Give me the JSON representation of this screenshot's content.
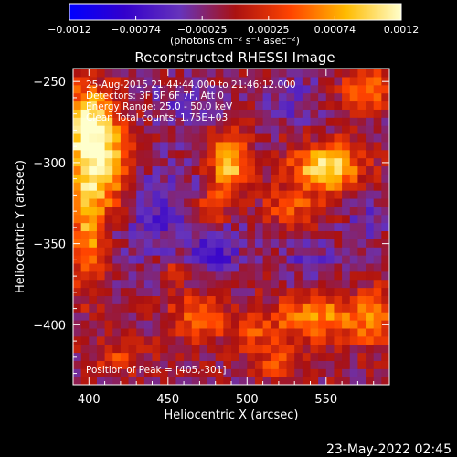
{
  "chart_data": {
    "type": "heatmap",
    "title": "Reconstructed RHESSI Image",
    "xlabel": "Heliocentric X (arcsec)",
    "ylabel": "Heliocentric Y (arcsec)",
    "xlim": [
      390,
      590
    ],
    "ylim": [
      -437,
      -242
    ],
    "x_ticks": [
      400,
      450,
      500,
      550
    ],
    "y_ticks": [
      -250,
      -300,
      -350,
      -400
    ],
    "colorbar": {
      "range": [
        -0.0012,
        0.0012
      ],
      "tick_labels": [
        "-0.0012",
        "-0.00074",
        "-0.00025",
        "0.00025",
        "0.00074",
        "0.0012"
      ],
      "unit_label": "(photons cm⁻² s⁻¹ asec⁻²)",
      "colors": [
        "#0000ff",
        "#3300cc",
        "#6633bb",
        "#aa1111",
        "#ff4400",
        "#ffbb00",
        "#ffffcc"
      ]
    },
    "annotations": [
      "25-Aug-2015 21:44:44.000 to 21:46:12.000",
      "Detectors: 3F 5F 6F 7F, Att 0",
      "Energy Range: 25.0 - 50.0 keV",
      "Clean     Total counts: 1.75E+03",
      "Position of Peak = [405,-301]"
    ],
    "peak": {
      "x": 405,
      "y": -301
    },
    "blobs": [
      {
        "x": 405,
        "y": -301,
        "sx": 14,
        "sy": 24,
        "amp": 0.0013
      },
      {
        "x": 398,
        "y": -272,
        "sx": 10,
        "sy": 14,
        "amp": 0.0008
      },
      {
        "x": 400,
        "y": -350,
        "sx": 7,
        "sy": 22,
        "amp": 0.0007
      },
      {
        "x": 488,
        "y": -300,
        "sx": 8,
        "sy": 14,
        "amp": 0.0011
      },
      {
        "x": 475,
        "y": -330,
        "sx": 8,
        "sy": 8,
        "amp": 0.0006
      },
      {
        "x": 550,
        "y": -303,
        "sx": 15,
        "sy": 10,
        "amp": 0.0012
      },
      {
        "x": 575,
        "y": -255,
        "sx": 10,
        "sy": 9,
        "amp": 0.0007
      },
      {
        "x": 528,
        "y": -328,
        "sx": 12,
        "sy": 8,
        "amp": 0.0005
      },
      {
        "x": 545,
        "y": -395,
        "sx": 20,
        "sy": 10,
        "amp": 0.0008
      },
      {
        "x": 580,
        "y": -395,
        "sx": 8,
        "sy": 12,
        "amp": 0.0007
      },
      {
        "x": 470,
        "y": -395,
        "sx": 12,
        "sy": 10,
        "amp": 0.0007
      },
      {
        "x": 505,
        "y": -405,
        "sx": 10,
        "sy": 8,
        "amp": 0.0004
      },
      {
        "x": 520,
        "y": -425,
        "sx": 10,
        "sy": 7,
        "amp": 0.0005
      },
      {
        "x": 420,
        "y": -420,
        "sx": 12,
        "sy": 8,
        "amp": 0.0004
      },
      {
        "x": 455,
        "y": -365,
        "sx": 8,
        "sy": 6,
        "amp": 0.0003
      },
      {
        "x": 440,
        "y": -330,
        "sx": 25,
        "sy": 20,
        "amp": -0.0004
      },
      {
        "x": 480,
        "y": -355,
        "sx": 12,
        "sy": 12,
        "amp": -0.0005
      },
      {
        "x": 460,
        "y": -265,
        "sx": 15,
        "sy": 10,
        "amp": -0.0003
      },
      {
        "x": 540,
        "y": -360,
        "sx": 14,
        "sy": 10,
        "amp": -0.0003
      },
      {
        "x": 530,
        "y": -262,
        "sx": 12,
        "sy": 10,
        "amp": -0.0003
      },
      {
        "x": 575,
        "y": -335,
        "sx": 8,
        "sy": 10,
        "amp": -0.0003
      }
    ]
  },
  "footer": {
    "timestamp": "23-May-2022 02:45"
  }
}
